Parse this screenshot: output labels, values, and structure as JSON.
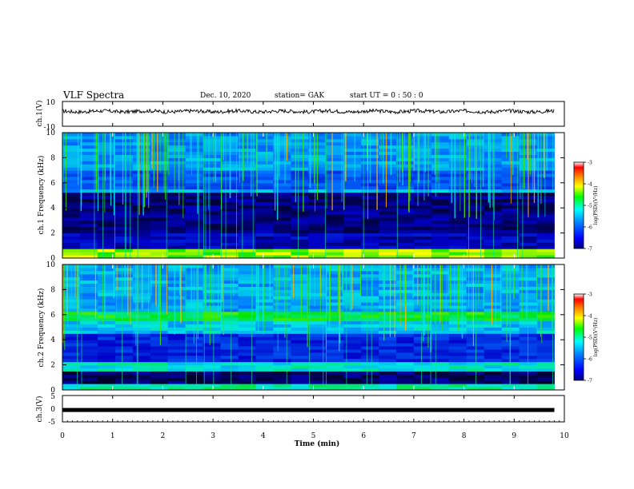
{
  "header": {
    "title": "VLF Spectra",
    "date": "Dec. 10, 2020",
    "station": "station= GAK",
    "start": "start  UT =  0 : 50 : 0"
  },
  "colorbar_ticks": [
    "-3",
    "-4",
    "-5",
    "-6",
    "-7"
  ],
  "colorbar_label": "log(PSD)(V²/Hz)",
  "chart_data": [
    {
      "type": "line",
      "name": "ch1-waveform",
      "ylabel": "ch.1(V)",
      "ylim": [
        -10,
        10
      ],
      "yticks": [
        "10",
        "-10"
      ],
      "xlim": [
        0,
        10
      ],
      "baseline": 2,
      "amplitude": 1.5
    },
    {
      "type": "heatmap",
      "name": "ch1-spectrogram",
      "ylabel": "ch.1 Frequency (kHz)",
      "ylim": [
        0,
        10
      ],
      "yticks": [
        "10",
        "8",
        "6",
        "4",
        "2",
        "0"
      ],
      "xlim": [
        0,
        10
      ],
      "data_end_min": 9.8,
      "colorbar": {
        "range": [
          -7,
          -3
        ]
      }
    },
    {
      "type": "heatmap",
      "name": "ch2-spectrogram",
      "ylabel": "ch.2 Frequency (kHz)",
      "ylim": [
        0,
        10
      ],
      "yticks": [
        "10",
        "8",
        "6",
        "4",
        "2",
        "0"
      ],
      "xlim": [
        0,
        10
      ],
      "data_end_min": 9.8,
      "colorbar": {
        "range": [
          -7,
          -3
        ]
      }
    },
    {
      "type": "line",
      "name": "ch3-signal",
      "ylabel": "ch.3(V)",
      "ylim": [
        -5,
        5
      ],
      "yticks": [
        "5",
        "0",
        "-5"
      ],
      "xlim": [
        0,
        10
      ],
      "constant_value": -0.5,
      "xlabel": "Time  (min)",
      "xticks": [
        "0",
        "1",
        "2",
        "3",
        "4",
        "5",
        "6",
        "7",
        "8",
        "9",
        "10"
      ]
    }
  ]
}
